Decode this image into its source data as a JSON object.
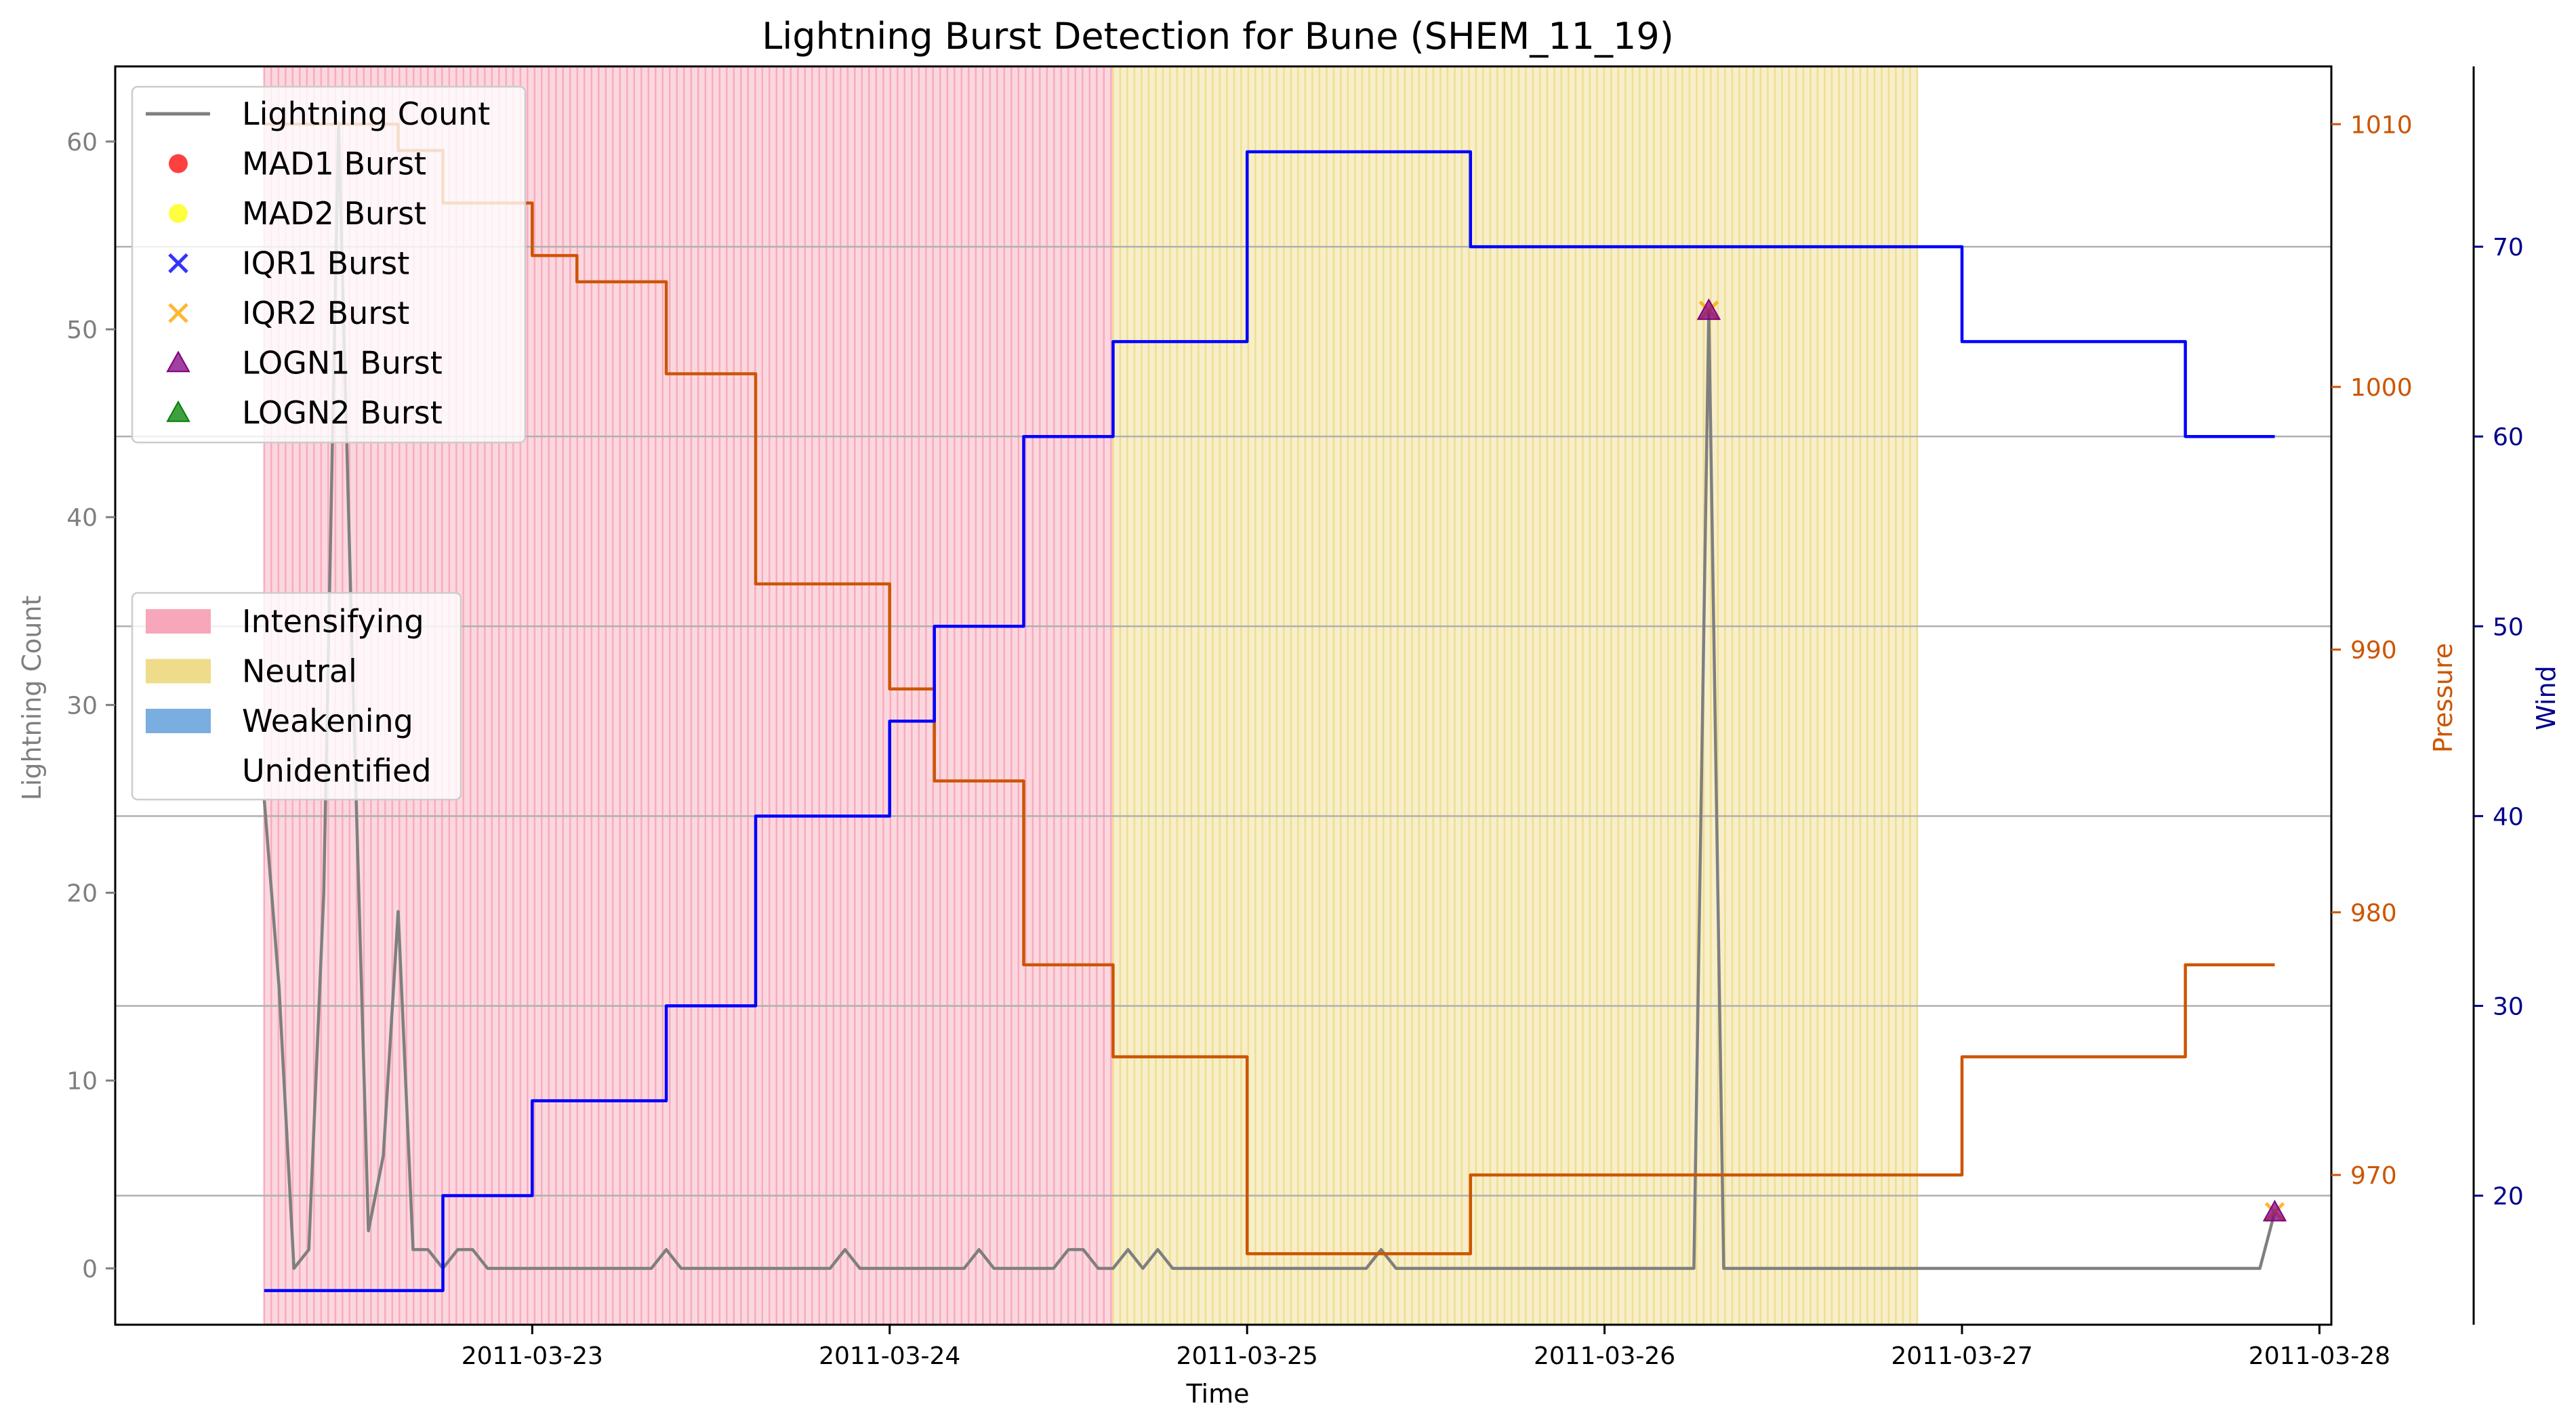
{
  "chart_data": {
    "type": "line",
    "title": "Lightning Burst Detection for Bune (SHEM_11_19)",
    "xlabel": "Time",
    "ylabel_left": "Lightning Count",
    "ylabel_pressure": "Pressure",
    "ylabel_wind": "Wind",
    "x_tick_labels": [
      "2011-03-23",
      "2011-03-24",
      "2011-03-25",
      "2011-03-26",
      "2011-03-27",
      "2011-03-28"
    ],
    "y_left_ticks": [
      0,
      10,
      20,
      30,
      40,
      50,
      60
    ],
    "y_pressure_ticks": [
      970,
      980,
      990,
      1000,
      1010
    ],
    "y_wind_ticks": [
      20,
      30,
      40,
      50,
      60,
      70
    ],
    "ylim_left": [
      -3,
      64
    ],
    "ylim_pressure": [
      964.3,
      1012.2
    ],
    "ylim_wind": [
      13.2,
      79.5
    ],
    "grid": "horizontal lines at wind ticks",
    "phases": [
      {
        "label": "Intensifying",
        "start": "2011-03-22 06:00",
        "end": "2011-03-24 15:00",
        "color": "#f7a7b9"
      },
      {
        "label": "Neutral",
        "start": "2011-03-24 15:00",
        "end": "2011-03-26 21:00",
        "color": "#eedc8a"
      }
    ],
    "series": [
      {
        "name": "Lightning Count",
        "axis": "left",
        "color": "#7f7f7f",
        "points": [
          [
            "2011-03-22 06:00",
            25
          ],
          [
            "2011-03-22 07:00",
            15
          ],
          [
            "2011-03-22 08:00",
            0
          ],
          [
            "2011-03-22 09:00",
            1
          ],
          [
            "2011-03-22 10:00",
            20
          ],
          [
            "2011-03-22 11:00",
            61
          ],
          [
            "2011-03-22 12:00",
            30
          ],
          [
            "2011-03-22 13:00",
            2
          ],
          [
            "2011-03-22 14:00",
            6
          ],
          [
            "2011-03-22 15:00",
            19
          ],
          [
            "2011-03-22 16:00",
            1
          ],
          [
            "2011-03-22 17:00",
            1
          ],
          [
            "2011-03-22 18:00",
            0
          ],
          [
            "2011-03-22 19:00",
            1
          ],
          [
            "2011-03-22 20:00",
            1
          ],
          [
            "2011-03-22 21:00",
            0
          ],
          [
            "2011-03-22 22:00",
            0
          ],
          [
            "2011-03-22 23:00",
            0
          ],
          [
            "2011-03-23 00:00",
            0
          ],
          [
            "2011-03-22 23:59",
            0
          ],
          [
            "2011-03-23 00:00",
            0
          ],
          [
            "2011-03-23 08:00",
            0
          ],
          [
            "2011-03-23 09:00",
            1
          ],
          [
            "2011-03-23 10:00",
            0
          ],
          [
            "2011-03-23 11:00",
            0
          ],
          [
            "2011-03-23 20:00",
            0
          ],
          [
            "2011-03-23 21:00",
            1
          ],
          [
            "2011-03-23 22:00",
            0
          ],
          [
            "2011-03-24 00:00",
            0
          ],
          [
            "2011-03-24 05:00",
            0
          ],
          [
            "2011-03-24 06:00",
            1
          ],
          [
            "2011-03-24 07:00",
            0
          ],
          [
            "2011-03-24 10:00",
            0
          ],
          [
            "2011-03-24 11:00",
            0
          ],
          [
            "2011-03-24 12:00",
            1
          ],
          [
            "2011-03-24 13:00",
            1
          ],
          [
            "2011-03-24 14:00",
            0
          ],
          [
            "2011-03-24 15:00",
            0
          ],
          [
            "2011-03-24 16:00",
            1
          ],
          [
            "2011-03-24 17:00",
            0
          ],
          [
            "2011-03-24 18:00",
            1
          ],
          [
            "2011-03-24 19:00",
            0
          ],
          [
            "2011-03-25 00:00",
            0
          ],
          [
            "2011-03-25 08:00",
            0
          ],
          [
            "2011-03-25 09:00",
            1
          ],
          [
            "2011-03-25 10:00",
            0
          ],
          [
            "2011-03-26 00:00",
            0
          ],
          [
            "2011-03-26 06:00",
            0
          ],
          [
            "2011-03-26 07:00",
            51
          ],
          [
            "2011-03-26 08:00",
            0
          ],
          [
            "2011-03-27 00:00",
            0
          ],
          [
            "2011-03-27 20:00",
            0
          ],
          [
            "2011-03-27 21:00",
            3
          ]
        ]
      },
      {
        "name": "Pressure",
        "axis": "pressure",
        "color": "#cc5500",
        "points": [
          [
            "2011-03-22 06:00",
            1010
          ],
          [
            "2011-03-22 15:00",
            1010
          ],
          [
            "2011-03-22 15:00",
            1009
          ],
          [
            "2011-03-22 18:00",
            1009
          ],
          [
            "2011-03-22 18:00",
            1007
          ],
          [
            "2011-03-23 00:00",
            1007
          ],
          [
            "2011-03-23 00:00",
            1005
          ],
          [
            "2011-03-23 03:00",
            1005
          ],
          [
            "2011-03-23 03:00",
            1004
          ],
          [
            "2011-03-23 09:00",
            1004
          ],
          [
            "2011-03-23 09:00",
            1000.5
          ],
          [
            "2011-03-23 15:00",
            1000.5
          ],
          [
            "2011-03-23 15:00",
            992.5
          ],
          [
            "2011-03-24 00:00",
            992.5
          ],
          [
            "2011-03-24 00:00",
            988.5
          ],
          [
            "2011-03-24 03:00",
            988.5
          ],
          [
            "2011-03-24 03:00",
            985
          ],
          [
            "2011-03-24 09:00",
            985
          ],
          [
            "2011-03-24 09:00",
            978
          ],
          [
            "2011-03-24 15:00",
            978
          ],
          [
            "2011-03-24 15:00",
            974.5
          ],
          [
            "2011-03-25 00:00",
            974.5
          ],
          [
            "2011-03-25 00:00",
            967
          ],
          [
            "2011-03-25 15:00",
            967
          ],
          [
            "2011-03-25 15:00",
            970
          ],
          [
            "2011-03-26 21:00",
            970
          ],
          [
            "2011-03-27 00:00",
            970
          ],
          [
            "2011-03-27 00:00",
            974.5
          ],
          [
            "2011-03-27 15:00",
            974.5
          ],
          [
            "2011-03-27 15:00",
            978
          ],
          [
            "2011-03-27 21:00",
            978
          ]
        ]
      },
      {
        "name": "Wind",
        "axis": "wind",
        "color": "#0000ff",
        "points": [
          [
            "2011-03-22 06:00",
            15
          ],
          [
            "2011-03-22 15:00",
            15
          ],
          [
            "2011-03-22 18:00",
            15
          ],
          [
            "2011-03-22 18:00",
            20
          ],
          [
            "2011-03-23 00:00",
            20
          ],
          [
            "2011-03-23 00:00",
            25
          ],
          [
            "2011-03-23 09:00",
            25
          ],
          [
            "2011-03-23 09:00",
            30
          ],
          [
            "2011-03-23 15:00",
            30
          ],
          [
            "2011-03-23 15:00",
            40
          ],
          [
            "2011-03-24 00:00",
            40
          ],
          [
            "2011-03-24 00:00",
            45
          ],
          [
            "2011-03-24 03:00",
            45
          ],
          [
            "2011-03-24 03:00",
            50
          ],
          [
            "2011-03-24 09:00",
            50
          ],
          [
            "2011-03-24 09:00",
            60
          ],
          [
            "2011-03-24 15:00",
            60
          ],
          [
            "2011-03-24 15:00",
            65
          ],
          [
            "2011-03-25 00:00",
            65
          ],
          [
            "2011-03-25 00:00",
            75
          ],
          [
            "2011-03-25 15:00",
            75
          ],
          [
            "2011-03-25 15:00",
            70
          ],
          [
            "2011-03-27 00:00",
            70
          ],
          [
            "2011-03-27 00:00",
            65
          ],
          [
            "2011-03-27 15:00",
            65
          ],
          [
            "2011-03-27 15:00",
            60
          ],
          [
            "2011-03-27 21:00",
            60
          ]
        ]
      }
    ],
    "bursts": [
      {
        "type": "IQR2 Burst",
        "x": "2011-03-26 07:00",
        "y": 51
      },
      {
        "type": "LOGN1 Burst",
        "x": "2011-03-26 07:00",
        "y": 51
      },
      {
        "type": "IQR2 Burst",
        "x": "2011-03-27 21:00",
        "y": 3
      },
      {
        "type": "LOGN1 Burst",
        "x": "2011-03-27 21:00",
        "y": 3
      }
    ],
    "legend_markers": {
      "placement": "top-left",
      "entries": [
        {
          "label": "Lightning Count",
          "marker": "line",
          "color": "#7f7f7f"
        },
        {
          "label": "MAD1 Burst",
          "marker": "circle",
          "color": "#ff0000"
        },
        {
          "label": "MAD2 Burst",
          "marker": "circle",
          "color": "#ffff00"
        },
        {
          "label": "IQR1 Burst",
          "marker": "x",
          "color": "#0000ff"
        },
        {
          "label": "IQR2 Burst",
          "marker": "x",
          "color": "#ffa500"
        },
        {
          "label": "LOGN1 Burst",
          "marker": "triangle",
          "color": "#800080"
        },
        {
          "label": "LOGN2 Burst",
          "marker": "triangle",
          "color": "#008000"
        }
      ]
    },
    "legend_phases": {
      "placement": "center-left",
      "entries": [
        {
          "label": "Intensifying",
          "color": "#f7a7b9"
        },
        {
          "label": "Neutral",
          "color": "#eedc8a"
        },
        {
          "label": "Weakening",
          "color": "#7aaee0"
        },
        {
          "label": "Unidentified",
          "color": "#ffffff"
        }
      ]
    }
  }
}
